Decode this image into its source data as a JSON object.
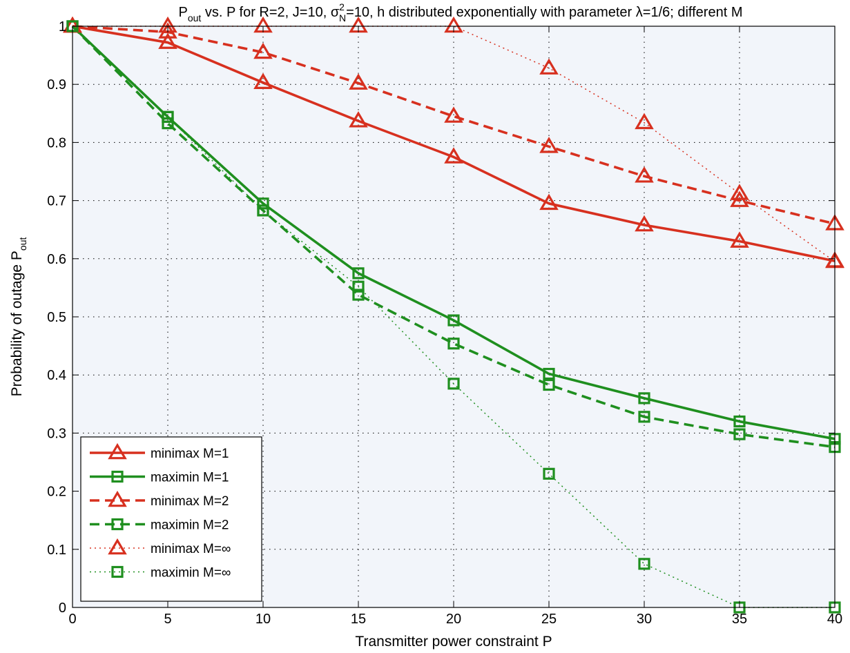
{
  "chart_data": {
    "type": "line",
    "title": {
      "prefix": "P",
      "prefix_sub": "out",
      "middle": " vs. P for R=2, J=10, σ",
      "sigma_sup": "2",
      "sigma_sub": "N",
      "suffix": "=10, h distributed exponentially with parameter λ=1/6; different M"
    },
    "xlabel": "Transmitter power constraint P",
    "ylabel": {
      "text": "Probability of outage P",
      "sub": "out"
    },
    "xlim": [
      0,
      40
    ],
    "ylim": [
      0,
      1
    ],
    "xticks": [
      "0",
      "5",
      "10",
      "15",
      "20",
      "25",
      "30",
      "35",
      "40"
    ],
    "yticks": [
      "0",
      "0.1",
      "0.2",
      "0.3",
      "0.4",
      "0.5",
      "0.6",
      "0.7",
      "0.8",
      "0.9",
      "1"
    ],
    "grid": true,
    "legend_position": "bottom-left",
    "colors": {
      "red": "#d7301f",
      "green": "#1f8f1f",
      "plot_background": "#f2f5fa"
    },
    "x": [
      0,
      5,
      10,
      15,
      20,
      25,
      30,
      35,
      40
    ],
    "series": [
      {
        "name": "minimax M=1",
        "color": "red",
        "dash": "solid",
        "marker": "triangle",
        "values": [
          1.0,
          0.972,
          0.903,
          0.837,
          0.775,
          0.695,
          0.658,
          0.63,
          0.596
        ]
      },
      {
        "name": "maximin M=1",
        "color": "green",
        "dash": "solid",
        "marker": "square",
        "values": [
          1.0,
          0.844,
          0.695,
          0.575,
          0.494,
          0.402,
          0.36,
          0.32,
          0.29
        ]
      },
      {
        "name": "minimax M=2",
        "color": "red",
        "dash": "dashed",
        "marker": "triangle",
        "values": [
          1.0,
          0.99,
          0.955,
          0.902,
          0.845,
          0.793,
          0.742,
          0.7,
          0.66
        ]
      },
      {
        "name": "maximin M=2",
        "color": "green",
        "dash": "dashed",
        "marker": "square",
        "values": [
          1.0,
          0.833,
          0.683,
          0.538,
          0.454,
          0.383,
          0.328,
          0.298,
          0.276
        ]
      },
      {
        "name": "minimax M=∞",
        "color": "red",
        "dash": "dotted",
        "marker": "triangle",
        "values": [
          1.0,
          1.0,
          1.0,
          1.0,
          1.0,
          0.928,
          0.834,
          0.712,
          0.595
        ]
      },
      {
        "name": "maximin M=∞",
        "color": "green",
        "dash": "dotted",
        "marker": "square",
        "values": [
          1.0,
          0.844,
          0.683,
          0.552,
          0.385,
          0.23,
          0.075,
          0.0,
          0.0
        ]
      }
    ]
  }
}
